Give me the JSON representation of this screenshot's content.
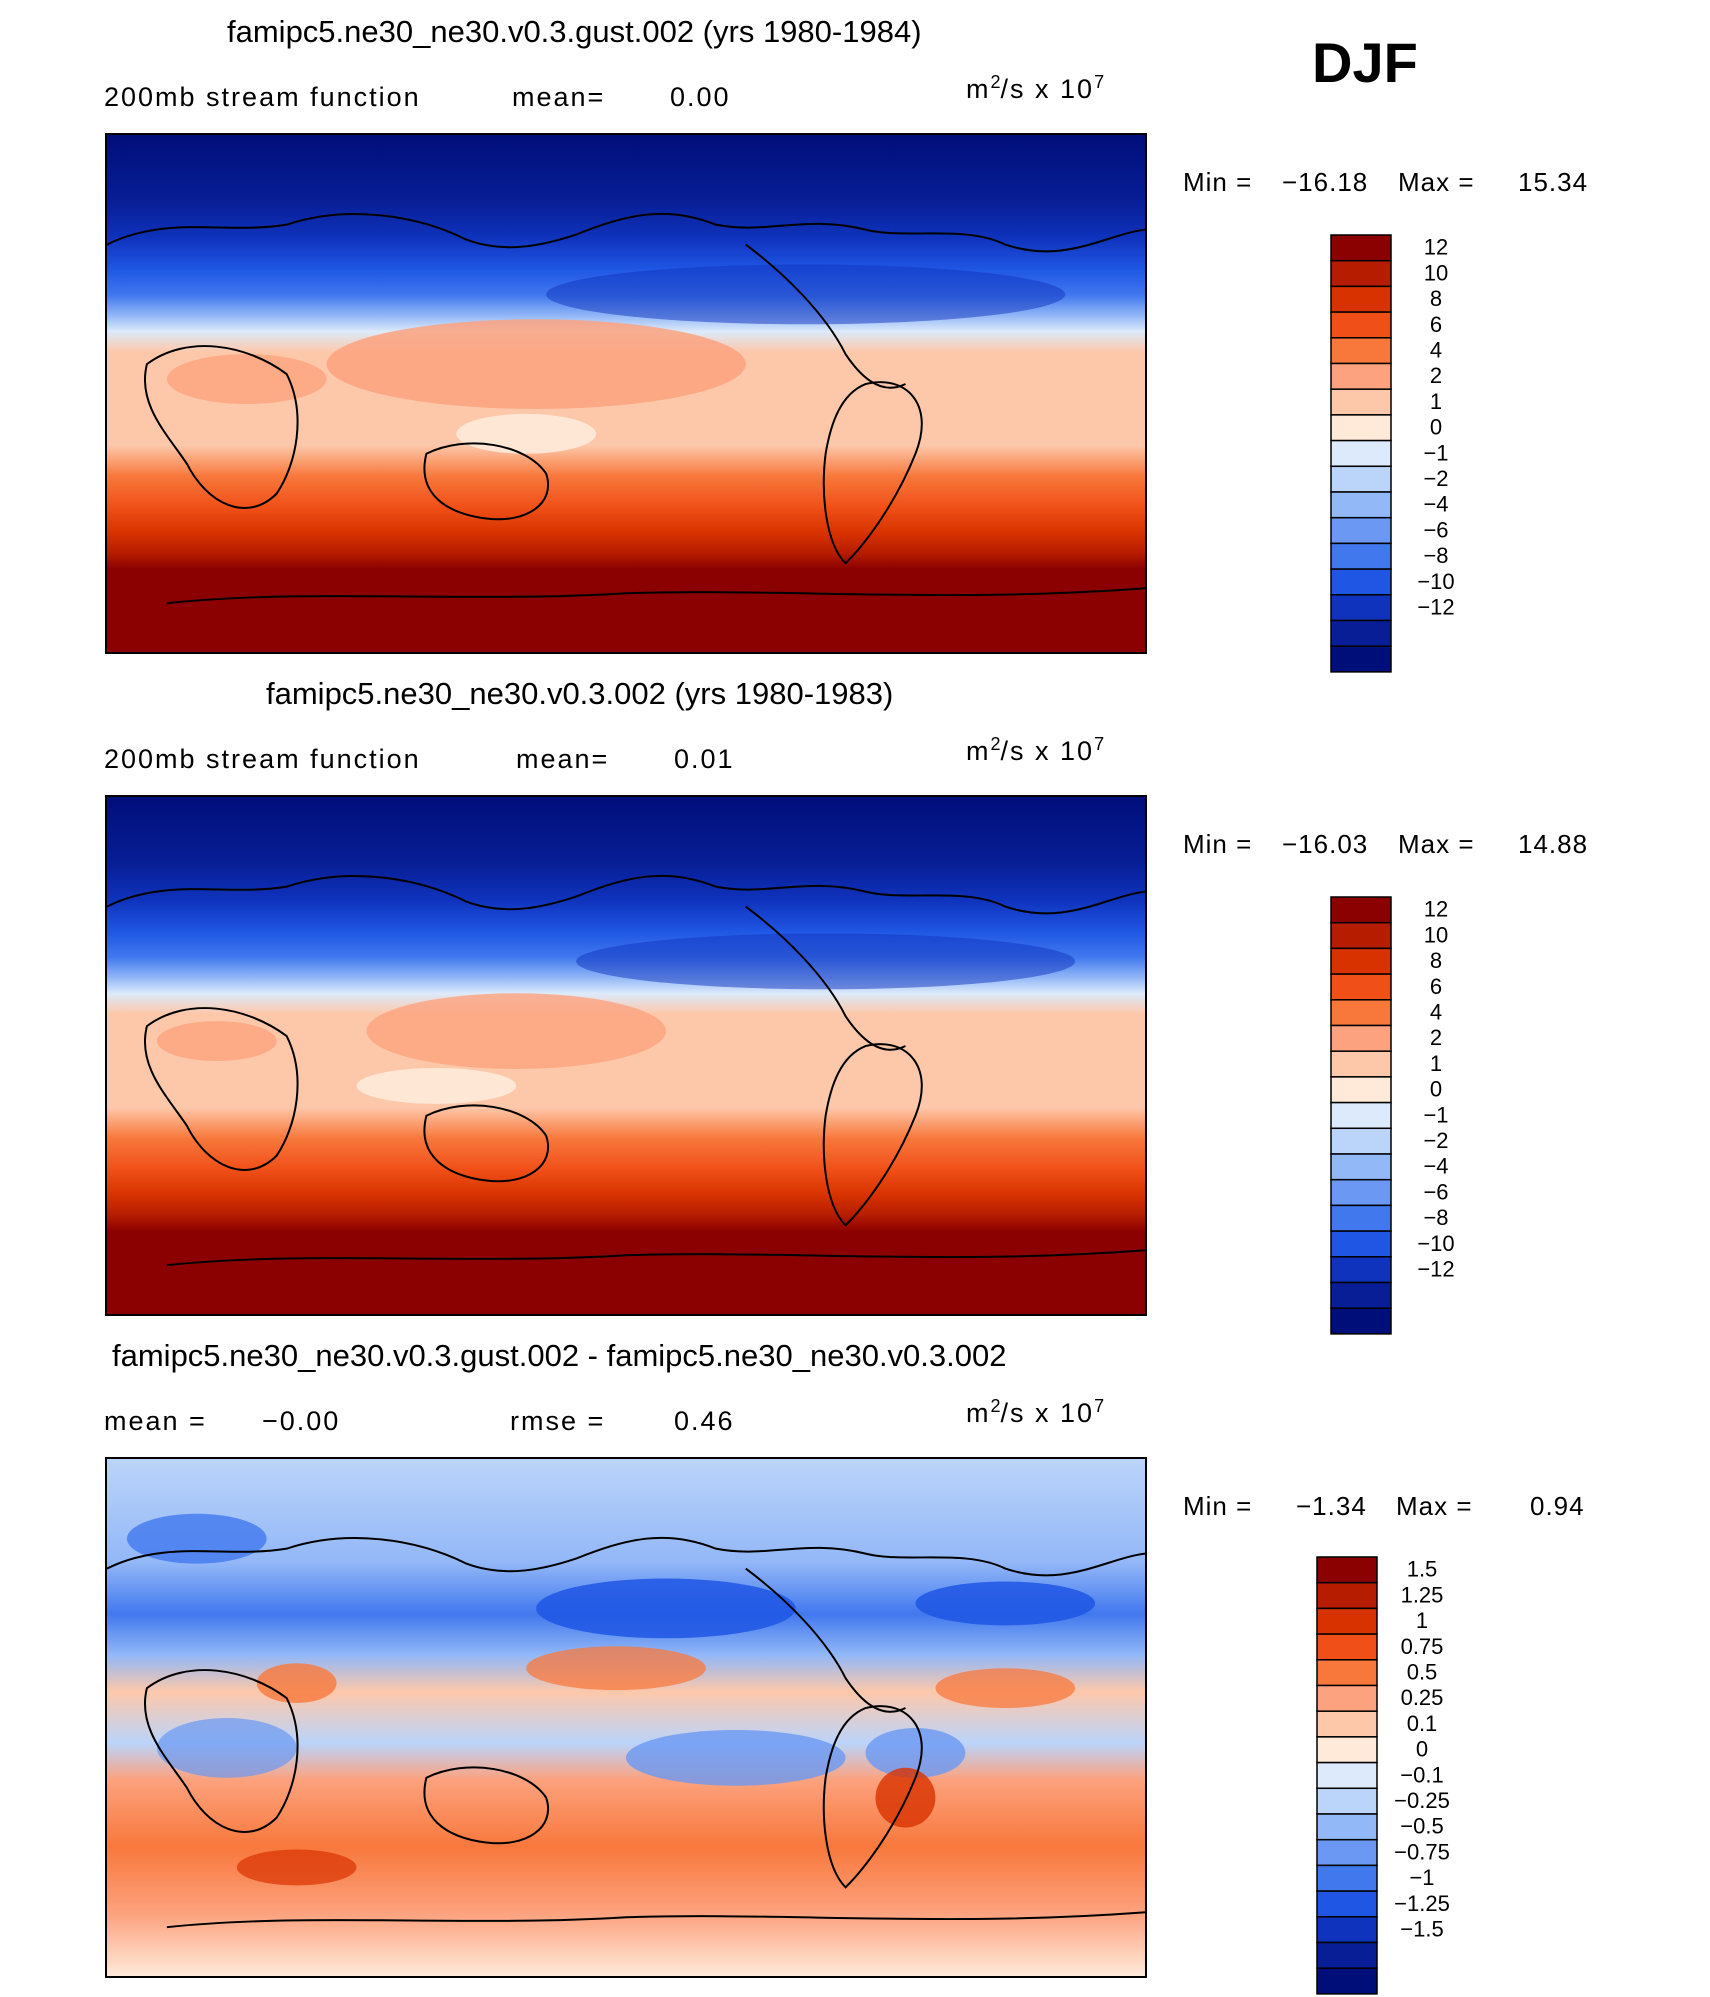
{
  "season": "DJF",
  "chart_data": [
    {
      "type": "heatmap",
      "title": "famipc5.ne30_ne30.v0.3.gust.002 (yrs 1980-1984)",
      "subtitle_left": "200mb stream function",
      "stat1_label": "mean=",
      "stat1_value": "0.00",
      "units_base": "m",
      "units_exp": "2",
      "units_mid": "/s x 10",
      "units_exp2": "7",
      "min_label": "Min =",
      "min_value": "-16.18",
      "max_label": "Max =",
      "max_value": "15.34",
      "map": "global-cylindrical-equidistant-centered-180",
      "levels": [
        "12",
        "10",
        "8",
        "6",
        "4",
        "2",
        "1",
        "0",
        "-1",
        "-2",
        "-4",
        "-6",
        "-8",
        "-10",
        "-12"
      ],
      "colors": [
        "#8B0000",
        "#B51C00",
        "#D83200",
        "#F05018",
        "#F8783C",
        "#FCA27E",
        "#FDC8AA",
        "#FFEADA",
        "#DCEAFB",
        "#BBD4FA",
        "#93B8F7",
        "#6A98F2",
        "#4178EE",
        "#1F56E4",
        "#0F33BD",
        "#081E96",
        "#000E7A"
      ]
    },
    {
      "type": "heatmap",
      "title": "famipc5.ne30_ne30.v0.3.002 (yrs 1980-1983)",
      "subtitle_left": "200mb stream function",
      "stat1_label": "mean=",
      "stat1_value": "0.01",
      "units_base": "m",
      "units_exp": "2",
      "units_mid": "/s x 10",
      "units_exp2": "7",
      "min_label": "Min =",
      "min_value": "-16.03",
      "max_label": "Max =",
      "max_value": "14.88",
      "map": "global-cylindrical-equidistant-centered-180",
      "levels": [
        "12",
        "10",
        "8",
        "6",
        "4",
        "2",
        "1",
        "0",
        "-1",
        "-2",
        "-4",
        "-6",
        "-8",
        "-10",
        "-12"
      ],
      "colors": [
        "#8B0000",
        "#B51C00",
        "#D83200",
        "#F05018",
        "#F8783C",
        "#FCA27E",
        "#FDC8AA",
        "#FFEADA",
        "#DCEAFB",
        "#BBD4FA",
        "#93B8F7",
        "#6A98F2",
        "#4178EE",
        "#1F56E4",
        "#0F33BD",
        "#081E96",
        "#000E7A"
      ]
    },
    {
      "type": "heatmap",
      "title": "famipc5.ne30_ne30.v0.3.gust.002 - famipc5.ne30_ne30.v0.3.002",
      "stat1_label": "mean =",
      "stat1_value": "-0.00",
      "stat2_label": "rmse =",
      "stat2_value": "0.46",
      "units_base": "m",
      "units_exp": "2",
      "units_mid": "/s x 10",
      "units_exp2": "7",
      "min_label": "Min =",
      "min_value": "-1.34",
      "max_label": "Max =",
      "max_value": "0.94",
      "map": "global-cylindrical-equidistant-centered-180",
      "levels": [
        "1.5",
        "1.25",
        "1",
        "0.75",
        "0.5",
        "0.25",
        "0.1",
        "0",
        "-0.1",
        "-0.25",
        "-0.5",
        "-0.75",
        "-1",
        "-1.25",
        "-1.5"
      ],
      "colors": [
        "#8B0000",
        "#B51C00",
        "#D83200",
        "#F05018",
        "#F8783C",
        "#FCA27E",
        "#FDC8AA",
        "#FFEADA",
        "#DCEAFB",
        "#BBD4FA",
        "#93B8F7",
        "#6A98F2",
        "#4178EE",
        "#1F56E4",
        "#0F33BD",
        "#081E96",
        "#000E7A"
      ]
    }
  ]
}
